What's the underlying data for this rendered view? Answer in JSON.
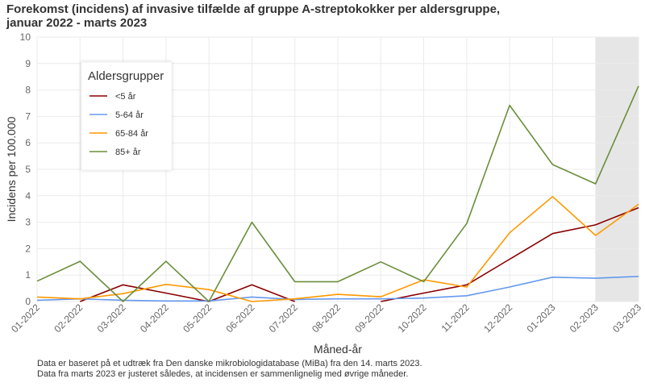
{
  "title_lines": [
    "Forekomst (incidens) af invasive tilfælde af gruppe A-streptokokker per aldersgruppe,",
    "januar 2022 - marts 2023"
  ],
  "footnote_lines": [
    "Data er baseret på et udtræk fra Den danske mikrobiologidatabase (MiBa) fra den 14. marts 2023.",
    "Data fra marts 2023 er justeret således, at incidensen er sammenlignelig med øvrige måneder."
  ],
  "chart_data": {
    "type": "line",
    "title": "Forekomst (incidens) af invasive tilfælde af gruppe A-streptokokker per aldersgruppe, januar 2022 - marts 2023",
    "xlabel": "Måned-år",
    "ylabel": "Incidens per 100.000",
    "ylim": [
      0,
      10
    ],
    "yticks": [
      0,
      1,
      2,
      3,
      4,
      5,
      6,
      7,
      8,
      9,
      10
    ],
    "grid": true,
    "legend_title": "Aldersgrupper",
    "legend_position": "top-left",
    "shaded_region": {
      "from": "02-2023",
      "to": "03-2023",
      "color": "#e6e6e6"
    },
    "categories": [
      "01-2022",
      "02-2022",
      "03-2022",
      "04-2022",
      "05-2022",
      "06-2022",
      "07-2022",
      "08-2022",
      "09-2022",
      "10-2022",
      "11-2022",
      "12-2022",
      "01-2023",
      "02-2023",
      "03-2023"
    ],
    "series": [
      {
        "name": "<5 år",
        "color": "#8b0000",
        "values": [
          null,
          0.0,
          0.63,
          0.32,
          0.0,
          0.63,
          0.0,
          null,
          0.0,
          0.32,
          0.63,
          1.6,
          2.57,
          2.9,
          3.55
        ]
      },
      {
        "name": "5-64 år",
        "color": "#6699ee",
        "values": [
          0.05,
          0.1,
          0.05,
          0.02,
          0.02,
          0.17,
          0.08,
          0.1,
          0.1,
          0.13,
          0.22,
          0.55,
          0.92,
          0.88,
          0.95
        ]
      },
      {
        "name": "65-84 år",
        "color": "#ff9900",
        "values": [
          0.17,
          0.1,
          0.3,
          0.65,
          0.45,
          0.0,
          0.1,
          0.27,
          0.18,
          0.82,
          0.55,
          2.6,
          3.97,
          2.5,
          3.68
        ]
      },
      {
        "name": "85+ år",
        "color": "#6b8e3a",
        "values": [
          0.77,
          1.52,
          0.0,
          1.52,
          0.0,
          3.0,
          0.75,
          0.75,
          1.5,
          0.75,
          2.95,
          7.42,
          5.18,
          4.45,
          8.15
        ]
      }
    ]
  }
}
